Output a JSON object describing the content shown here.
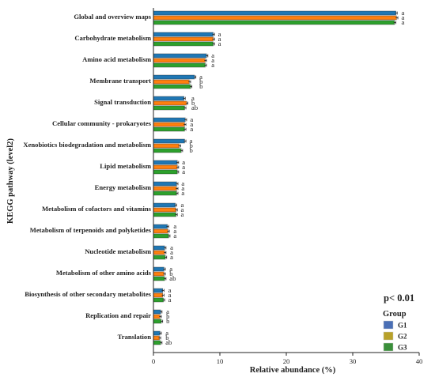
{
  "chart_data": {
    "type": "bar",
    "orientation": "horizontal",
    "xlabel": "Relative abundance (%)",
    "ylabel": "KEGG pathway (level2)",
    "xlim": [
      0,
      40
    ],
    "xticks": [
      "0",
      "10",
      "20",
      "30",
      "40"
    ],
    "annotation": "p< 0.01",
    "legend_title": "Group",
    "legend_position": "bottom-right",
    "categories": [
      "Global and overview maps",
      "Carbohydrate metabolism",
      "Amino acid metabolism",
      "Membrane transport",
      "Signal transduction",
      "Cellular community - prokaryotes",
      "Xenobiotics biodegradation and metabolism",
      "Lipid metabolism",
      "Energy metabolism",
      "Metabolism of cofactors and vitamins",
      "Metabolism of terpenoids and polyketides",
      "Nucleotide metabolism",
      "Metabolism of other amino acids",
      "Biosynthesis of other secondary metabolites",
      "Replication and repair",
      "Translation"
    ],
    "series": [
      {
        "name": "G1",
        "color": "#1f77b4",
        "values": [
          36.5,
          9.0,
          8.0,
          6.2,
          4.6,
          4.8,
          4.7,
          3.6,
          3.5,
          3.3,
          2.1,
          1.7,
          1.6,
          1.4,
          1.1,
          1.0
        ]
      },
      {
        "name": "G2",
        "color": "#ff7f0e",
        "values": [
          36.6,
          9.0,
          7.8,
          5.4,
          5.0,
          4.7,
          3.9,
          3.6,
          3.5,
          3.4,
          2.2,
          1.7,
          1.6,
          1.4,
          1.0,
          0.9
        ]
      },
      {
        "name": "G3",
        "color": "#2ca02c",
        "values": [
          36.3,
          9.0,
          7.8,
          5.6,
          4.7,
          4.7,
          4.2,
          3.6,
          3.5,
          3.4,
          2.3,
          1.8,
          1.7,
          1.5,
          1.2,
          1.1
        ]
      }
    ],
    "significance": [
      [
        "a",
        "a",
        "a"
      ],
      [
        "a",
        "a",
        "a"
      ],
      [
        "a",
        "a",
        "a"
      ],
      [
        "a",
        "b",
        "b"
      ],
      [
        "a",
        "b",
        "ab"
      ],
      [
        "a",
        "a",
        "a"
      ],
      [
        "a",
        "b",
        "b"
      ],
      [
        "a",
        "a",
        "a"
      ],
      [
        "a",
        "a",
        "a"
      ],
      [
        "a",
        "a",
        "a"
      ],
      [
        "a",
        "a",
        "a"
      ],
      [
        "a",
        "a",
        "a"
      ],
      [
        "a",
        "b",
        "ab"
      ],
      [
        "a",
        "a",
        "a"
      ],
      [
        "a",
        "b",
        "b"
      ],
      [
        "a",
        "b",
        "ab"
      ]
    ],
    "legend_colors": [
      "#4a6fb5",
      "#b8a12a",
      "#3a8f3a"
    ]
  }
}
